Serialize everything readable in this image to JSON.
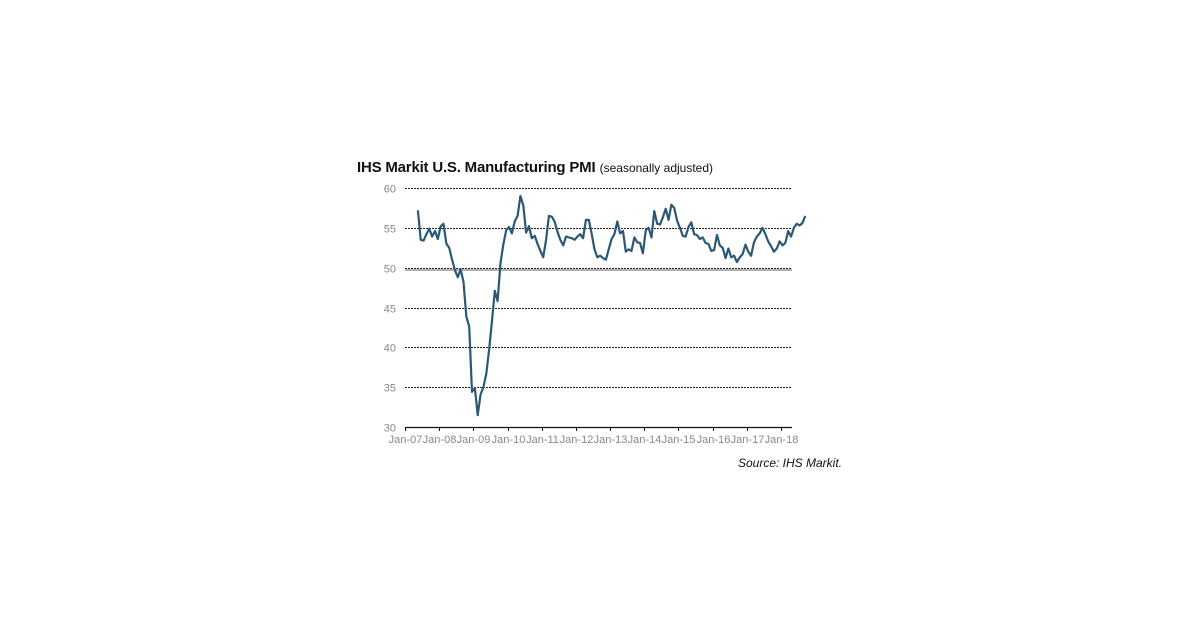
{
  "chart_data": {
    "type": "line",
    "title": "IHS Markit U.S. Manufacturing PMI",
    "subtitle": "(seasonally adjusted)",
    "source": "Source: IHS Markit.",
    "xlabel": "",
    "ylabel": "",
    "ylim": [
      30,
      60
    ],
    "yticks": [
      30,
      35,
      40,
      45,
      50,
      55,
      60
    ],
    "xticks": [
      "Jan-07",
      "Jan-08",
      "Jan-09",
      "Jan-10",
      "Jan-11",
      "Jan-12",
      "Jan-13",
      "Jan-14",
      "Jan-15",
      "Jan-16",
      "Jan-17",
      "Jan-18"
    ],
    "grid": "horizontal dashed",
    "reference_line": 50,
    "legend": "none",
    "line_color": "#2b5876",
    "series": [
      {
        "name": "IHS Markit U.S. Manufacturing PMI",
        "start": "May-07",
        "frequency": "monthly",
        "values": [
          57.2,
          53.5,
          53.4,
          54.2,
          54.9,
          53.9,
          54.6,
          53.6,
          55.2,
          55.5,
          53.0,
          52.5,
          51.0,
          49.7,
          48.8,
          49.8,
          48.2,
          43.9,
          42.6,
          34.4,
          34.9,
          31.5,
          34.1,
          35.0,
          36.7,
          39.7,
          43.2,
          47.1,
          45.8,
          50.6,
          52.9,
          54.7,
          55.1,
          54.3,
          55.8,
          56.5,
          59.0,
          57.8,
          54.4,
          55.2,
          53.7,
          54.0,
          53.0,
          52.1,
          51.3,
          53.5,
          56.5,
          56.4,
          55.8,
          54.5,
          53.5,
          52.8,
          53.9,
          53.8,
          53.7,
          53.5,
          53.9,
          54.2,
          53.7,
          56.0,
          56.0,
          54.3,
          52.3,
          51.3,
          51.5,
          51.2,
          51.0,
          52.3,
          53.6,
          54.2,
          55.8,
          54.3,
          54.6,
          52.0,
          52.3,
          52.1,
          53.8,
          53.2,
          53.1,
          51.8,
          54.7,
          55.0,
          53.8,
          57.1,
          55.5,
          55.4,
          56.3,
          57.4,
          56.0,
          57.9,
          57.5,
          55.9,
          55.0,
          54.0,
          53.9,
          55.1,
          55.7,
          54.2,
          54.1,
          53.6,
          53.8,
          53.1,
          53.0,
          52.1,
          52.2,
          54.1,
          52.8,
          52.5,
          51.2,
          52.4,
          51.3,
          51.5,
          50.7,
          51.3,
          51.7,
          52.9,
          52.0,
          51.5,
          53.2,
          53.9,
          54.3,
          55.0,
          54.2,
          53.3,
          52.7,
          52.0,
          52.4,
          53.3,
          52.8,
          53.1,
          54.6,
          53.9,
          55.0,
          55.5,
          55.3,
          55.6,
          56.5
        ]
      }
    ]
  }
}
